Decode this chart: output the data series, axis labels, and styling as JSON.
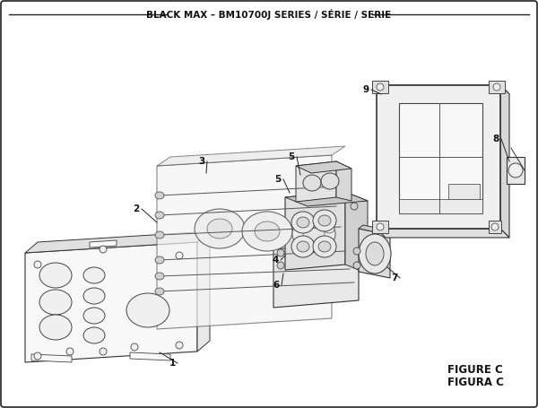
{
  "title": "BLACK MAX – BM10700J SERIES / SÉRIE / SERIE",
  "figure_label": "FIGURE C",
  "figura_label": "FIGURA C",
  "bg_color": "#ffffff",
  "lc": "#222222",
  "lw": 0.7,
  "title_fontsize": 7.5,
  "label_fontsize": 7.5
}
